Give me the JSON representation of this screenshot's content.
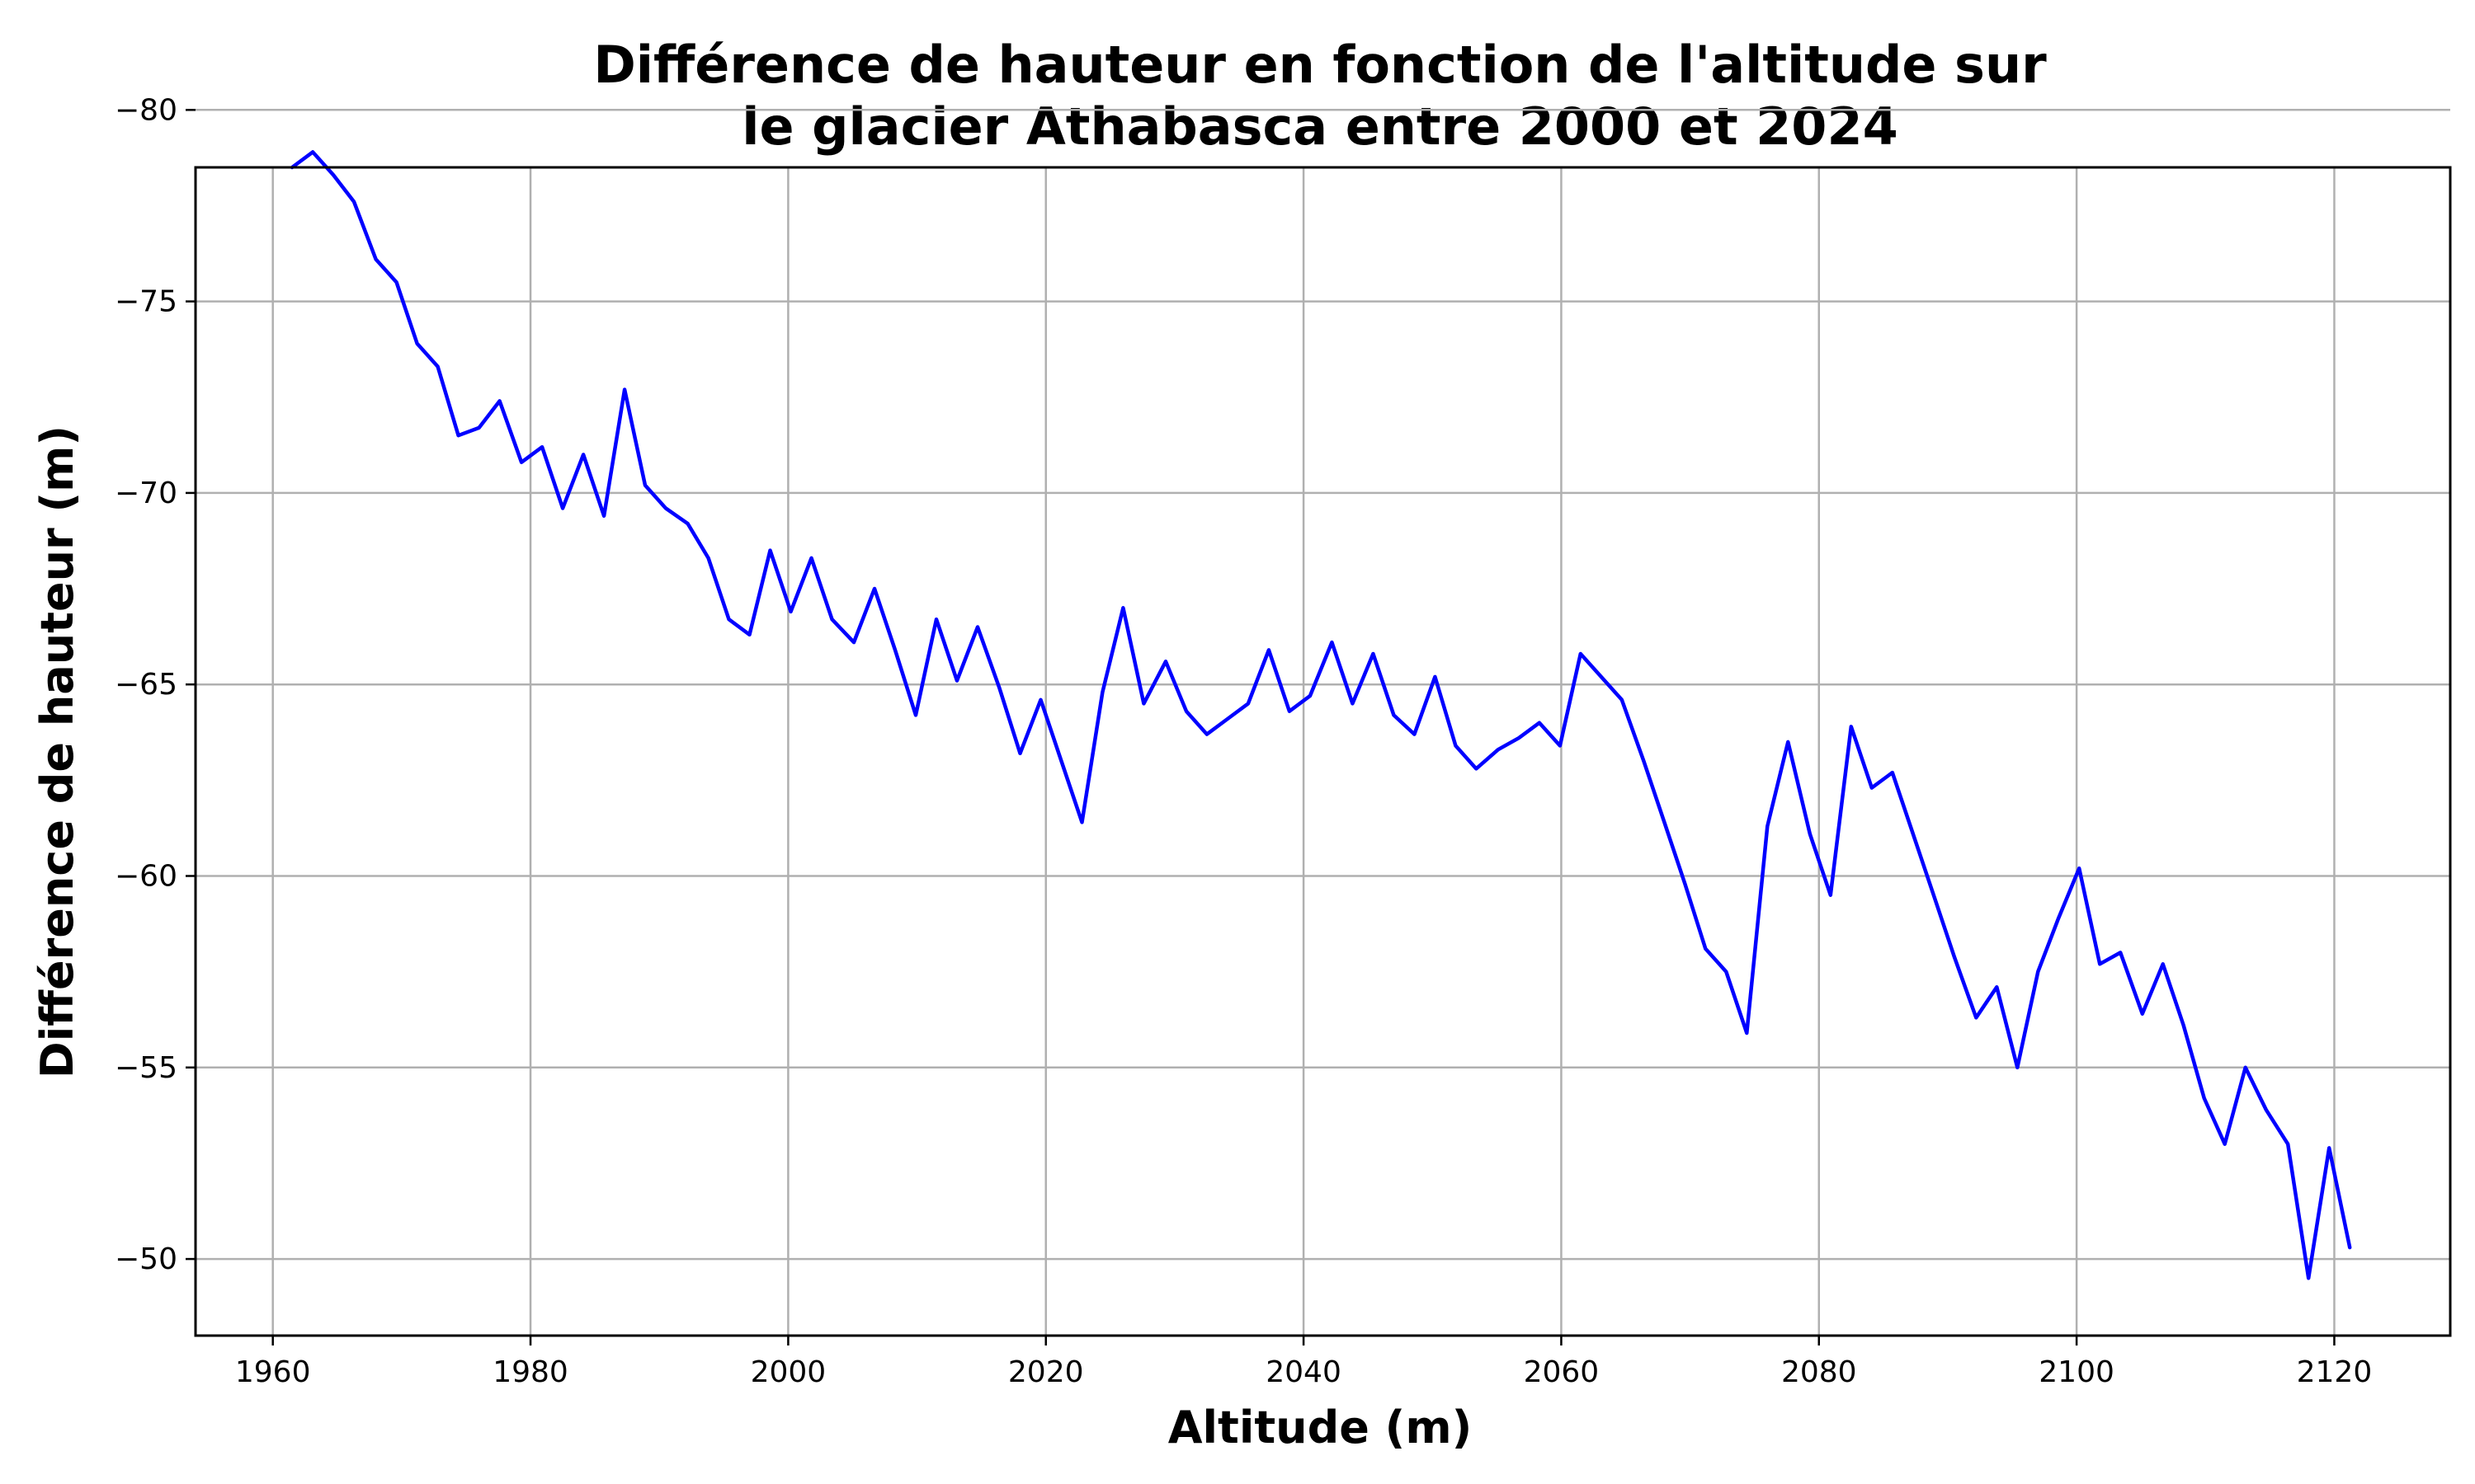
{
  "chart_data": {
    "type": "line",
    "title": [
      "Différence de hauteur en fonction de l'altitude sur",
      "le glacier Athabasca entre 2000 et 2024"
    ],
    "xlabel": "Altitude (m)",
    "ylabel": "Différence de hauteur (m)",
    "xlim": [
      1954,
      2129
    ],
    "ylim": [
      -78.5,
      -48
    ],
    "y_inverted": true,
    "grid": true,
    "x_ticks": [
      1960,
      1980,
      2000,
      2020,
      2040,
      2060,
      2080,
      2100,
      2120
    ],
    "x_tick_labels": [
      "1960",
      "1980",
      "2000",
      "2020",
      "2040",
      "2060",
      "2080",
      "2100",
      "2120"
    ],
    "y_ticks": [
      -80,
      -75,
      -70,
      -65,
      -60,
      -55,
      -50
    ],
    "y_tick_labels": [
      "−80",
      "−75",
      "−70",
      "−65",
      "−60",
      "−55",
      "−50"
    ],
    "series": [
      {
        "color": "#0000ff",
        "x": [
          1961.5,
          1963.1,
          1964.7,
          1966.3,
          1968.0,
          1969.6,
          1971.2,
          1972.8,
          1974.4,
          1976.0,
          1977.6,
          1979.3,
          1980.9,
          1982.5,
          1984.1,
          1985.7,
          1987.3,
          1988.9,
          1990.5,
          1992.2,
          1993.8,
          1995.4,
          1997.0,
          1998.6,
          2000.2,
          2001.8,
          2003.4,
          2005.1,
          2006.7,
          2008.3,
          2009.9,
          2011.5,
          2013.1,
          2014.7,
          2016.4,
          2018.0,
          2019.6,
          2021.2,
          2022.8,
          2024.4,
          2026.0,
          2027.6,
          2029.3,
          2030.9,
          2032.5,
          2034.1,
          2035.7,
          2037.3,
          2038.9,
          2040.5,
          2042.2,
          2043.8,
          2045.4,
          2047.0,
          2048.6,
          2050.2,
          2051.8,
          2053.4,
          2055.1,
          2056.7,
          2058.3,
          2059.9,
          2061.5,
          2063.1,
          2064.7,
          2066.4,
          2068.0,
          2069.6,
          2071.2,
          2072.8,
          2074.4,
          2076.0,
          2077.6,
          2079.3,
          2080.9,
          2082.5,
          2084.1,
          2085.7,
          2087.3,
          2088.9,
          2090.5,
          2092.2,
          2093.8,
          2095.4,
          2097.0,
          2098.6,
          2100.2,
          2101.8,
          2103.4,
          2105.1,
          2106.7,
          2108.3,
          2109.9,
          2111.5,
          2113.1,
          2114.7,
          2116.4,
          2118.0,
          2119.6,
          2121.2
        ],
        "y": [
          -78.5,
          -78.9,
          -78.3,
          -77.6,
          -76.1,
          -75.5,
          -73.9,
          -73.3,
          -71.5,
          -71.7,
          -72.4,
          -70.8,
          -71.2,
          -69.6,
          -71.0,
          -69.4,
          -72.7,
          -70.2,
          -69.6,
          -69.2,
          -68.3,
          -66.7,
          -66.3,
          -68.5,
          -66.9,
          -68.3,
          -66.7,
          -66.1,
          -67.5,
          -65.9,
          -64.2,
          -66.7,
          -65.1,
          -66.5,
          -64.9,
          -63.2,
          -64.6,
          -63.0,
          -61.4,
          -64.8,
          -67.0,
          -64.5,
          -65.6,
          -64.3,
          -63.7,
          -64.1,
          -64.5,
          -65.9,
          -64.3,
          -64.7,
          -66.1,
          -64.5,
          -65.8,
          -64.2,
          -63.7,
          -65.2,
          -63.4,
          -62.8,
          -63.3,
          -63.6,
          -64.0,
          -63.4,
          -65.8,
          -65.2,
          -64.6,
          -63.0,
          -61.4,
          -59.8,
          -58.1,
          -57.5,
          -55.9,
          -61.3,
          -63.5,
          -61.1,
          -59.5,
          -63.9,
          -62.3,
          -62.7,
          -61.1,
          -59.5,
          -57.9,
          -56.3,
          -57.1,
          -55.0,
          -57.5,
          -58.9,
          -60.2,
          -57.7,
          -58.0,
          -56.4,
          -57.7,
          -56.1,
          -54.2,
          -53.0,
          -55.0,
          -53.9,
          -53.0,
          -49.5,
          -52.9,
          -50.3
        ]
      }
    ]
  }
}
